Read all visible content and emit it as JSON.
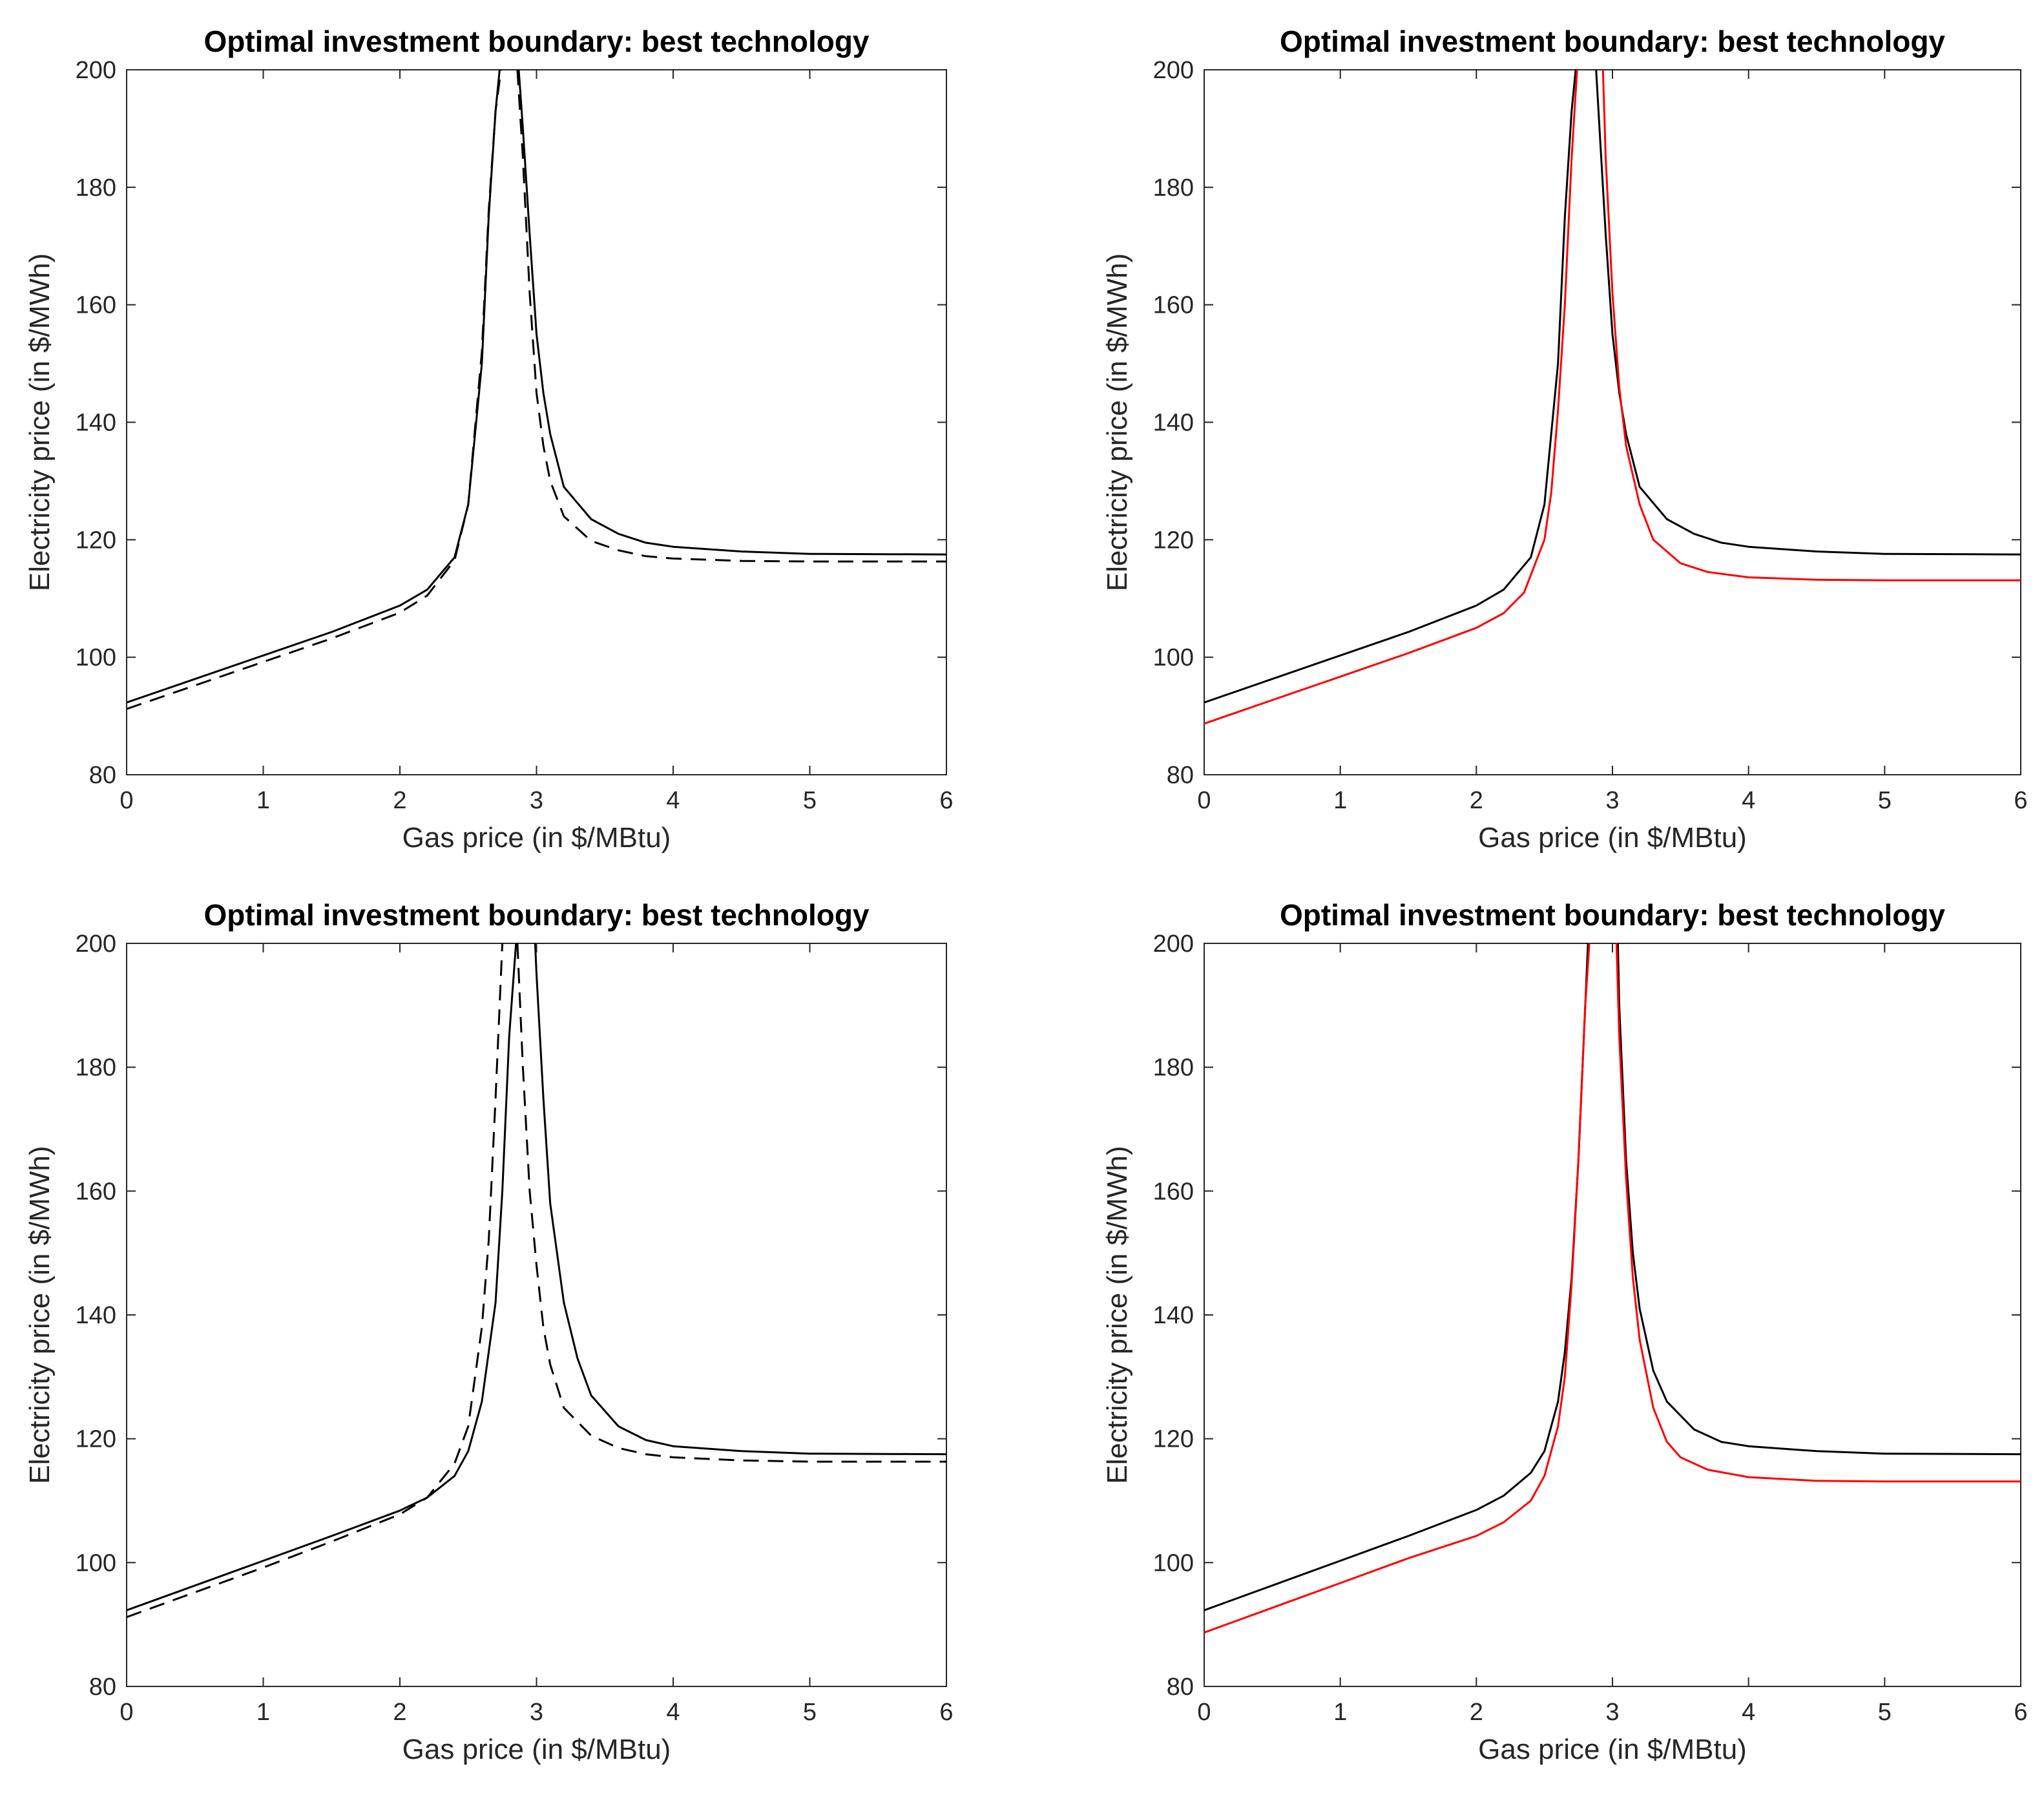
{
  "figure": {
    "colors": {
      "axis": "#262626",
      "series_black": "#000000",
      "series_red": "#ff0000"
    }
  },
  "chart_data": [
    {
      "type": "line",
      "title": "Optimal investment boundary: best technology",
      "xlabel": "Gas price (in $/MBtu)",
      "ylabel": "Electricity price (in $/MWh)",
      "xlim": [
        0,
        6
      ],
      "ylim": [
        80,
        200
      ],
      "xticks": [
        0,
        1,
        2,
        3,
        4,
        5,
        6
      ],
      "yticks": [
        80,
        100,
        120,
        140,
        160,
        180,
        200
      ],
      "grid": false,
      "series": [
        {
          "name": "baseline",
          "color": "#000000",
          "style": "solid",
          "segments": [
            {
              "x": [
                0,
                0.5,
                1,
                1.5,
                2,
                2.2,
                2.4,
                2.5,
                2.6,
                2.65,
                2.7,
                2.73
              ],
              "y": [
                92.3,
                96.3,
                100.3,
                104.3,
                108.8,
                111.5,
                117,
                126,
                150,
                175,
                193,
                200
              ]
            },
            {
              "x": [
                2.87,
                2.9,
                2.95,
                3.0,
                3.05,
                3.1,
                3.2,
                3.4,
                3.6,
                3.8,
                4.0,
                4.5,
                5.0,
                6.0
              ],
              "y": [
                200,
                190,
                172,
                155,
                145,
                138,
                129,
                123.5,
                121,
                119.5,
                118.8,
                118,
                117.6,
                117.5
              ]
            }
          ]
        },
        {
          "name": "comparison",
          "color": "#000000",
          "style": "dashed",
          "segments": [
            {
              "x": [
                0,
                0.5,
                1,
                1.5,
                2,
                2.2,
                2.4,
                2.5,
                2.6,
                2.65,
                2.7,
                2.74
              ],
              "y": [
                91.2,
                95.2,
                99.2,
                103.2,
                107.6,
                110.5,
                116.5,
                126,
                152,
                176,
                193,
                200
              ]
            },
            {
              "x": [
                2.86,
                2.9,
                2.95,
                3.0,
                3.05,
                3.1,
                3.2,
                3.4,
                3.6,
                3.8,
                4.0,
                4.5,
                5.0,
                6.0
              ],
              "y": [
                200,
                185,
                162,
                145,
                136,
                130,
                124,
                119.8,
                118.2,
                117.2,
                116.8,
                116.4,
                116.3,
                116.3
              ]
            }
          ]
        }
      ]
    },
    {
      "type": "line",
      "title": "Optimal investment boundary: best technology",
      "xlabel": "Gas price (in $/MBtu)",
      "ylabel": "Electricity price (in $/MWh)",
      "xlim": [
        0,
        6
      ],
      "ylim": [
        80,
        200
      ],
      "xticks": [
        0,
        1,
        2,
        3,
        4,
        5,
        6
      ],
      "yticks": [
        80,
        100,
        120,
        140,
        160,
        180,
        200
      ],
      "grid": false,
      "series": [
        {
          "name": "baseline",
          "color": "#000000",
          "style": "solid",
          "segments": [
            {
              "x": [
                0,
                0.5,
                1,
                1.5,
                2,
                2.2,
                2.4,
                2.5,
                2.6,
                2.65,
                2.7,
                2.73
              ],
              "y": [
                92.3,
                96.3,
                100.3,
                104.3,
                108.8,
                111.5,
                117,
                126,
                150,
                175,
                193,
                200
              ]
            },
            {
              "x": [
                2.88,
                2.9,
                2.95,
                3.0,
                3.05,
                3.1,
                3.2,
                3.4,
                3.6,
                3.8,
                4.0,
                4.5,
                5.0,
                6.0
              ],
              "y": [
                200,
                192,
                172,
                155,
                145,
                138,
                129,
                123.5,
                121,
                119.5,
                118.8,
                118,
                117.6,
                117.5
              ]
            }
          ]
        },
        {
          "name": "alternative",
          "color": "#ff0000",
          "style": "solid",
          "segments": [
            {
              "x": [
                0,
                0.5,
                1,
                1.5,
                2,
                2.2,
                2.35,
                2.5,
                2.55,
                2.6,
                2.65,
                2.7,
                2.74
              ],
              "y": [
                88.7,
                92.7,
                96.7,
                100.7,
                105,
                107.5,
                111,
                120,
                128,
                142,
                160,
                185,
                200
              ]
            },
            {
              "x": [
                2.93,
                2.95,
                3.0,
                3.05,
                3.1,
                3.2,
                3.3,
                3.5,
                3.7,
                4.0,
                4.5,
                5.0,
                6.0
              ],
              "y": [
                200,
                185,
                162,
                146,
                136,
                126,
                120,
                116,
                114.5,
                113.6,
                113.2,
                113.1,
                113.1
              ]
            }
          ]
        }
      ]
    },
    {
      "type": "line",
      "title": "Optimal investment boundary: best technology",
      "xlabel": "Gas price (in $/MBtu)",
      "ylabel": "Electricity price (in $/MWh)",
      "xlim": [
        0,
        6
      ],
      "ylim": [
        80,
        200
      ],
      "xticks": [
        0,
        1,
        2,
        3,
        4,
        5,
        6
      ],
      "yticks": [
        80,
        100,
        120,
        140,
        160,
        180,
        200
      ],
      "grid": false,
      "series": [
        {
          "name": "baseline",
          "color": "#000000",
          "style": "solid",
          "segments": [
            {
              "x": [
                0,
                0.5,
                1,
                1.5,
                2,
                2.2,
                2.4,
                2.5,
                2.6,
                2.7,
                2.75,
                2.8,
                2.85
              ],
              "y": [
                92.3,
                96.3,
                100.3,
                104.3,
                108.4,
                110.5,
                114,
                118,
                126,
                142,
                160,
                185,
                200
              ]
            },
            {
              "x": [
                2.99,
                3.0,
                3.05,
                3.1,
                3.2,
                3.3,
                3.4,
                3.6,
                3.8,
                4.0,
                4.5,
                5.0,
                6.0
              ],
              "y": [
                200,
                195,
                175,
                158,
                142,
                133,
                127,
                122,
                119.8,
                118.8,
                118,
                117.6,
                117.5
              ]
            }
          ]
        },
        {
          "name": "comparison",
          "color": "#000000",
          "style": "dashed",
          "segments": [
            {
              "x": [
                0,
                0.5,
                1,
                1.5,
                2,
                2.2,
                2.4,
                2.5,
                2.6,
                2.65,
                2.7,
                2.75
              ],
              "y": [
                91.2,
                95.2,
                99.2,
                103.4,
                107.8,
                110.5,
                116,
                122,
                138,
                152,
                175,
                200
              ]
            },
            {
              "x": [
                2.86,
                2.9,
                2.95,
                3.0,
                3.05,
                3.1,
                3.2,
                3.4,
                3.6,
                3.8,
                4.0,
                4.5,
                5.0,
                6.0
              ],
              "y": [
                200,
                180,
                160,
                148,
                138,
                132,
                125,
                120.5,
                118.5,
                117.5,
                117,
                116.5,
                116.3,
                116.3
              ]
            }
          ]
        }
      ]
    },
    {
      "type": "line",
      "title": "Optimal investment boundary: best technology",
      "xlabel": "Gas price (in $/MBtu)",
      "ylabel": "Electricity price (in $/MWh)",
      "xlim": [
        0,
        6
      ],
      "ylim": [
        80,
        200
      ],
      "xticks": [
        0,
        1,
        2,
        3,
        4,
        5,
        6
      ],
      "yticks": [
        80,
        100,
        120,
        140,
        160,
        180,
        200
      ],
      "grid": false,
      "series": [
        {
          "name": "baseline",
          "color": "#000000",
          "style": "solid",
          "segments": [
            {
              "x": [
                0,
                0.5,
                1,
                1.5,
                2,
                2.2,
                2.4,
                2.5,
                2.6,
                2.65,
                2.7,
                2.75,
                2.8,
                2.82
              ],
              "y": [
                92.3,
                96.3,
                100.3,
                104.3,
                108.5,
                110.8,
                114.5,
                118,
                126,
                134,
                146,
                165,
                190,
                200
              ]
            },
            {
              "x": [
                3.04,
                3.05,
                3.1,
                3.15,
                3.2,
                3.3,
                3.4,
                3.6,
                3.8,
                4.0,
                4.5,
                5.0,
                6.0
              ],
              "y": [
                200,
                190,
                165,
                150,
                141,
                131,
                126,
                121.5,
                119.5,
                118.8,
                118,
                117.6,
                117.5
              ]
            }
          ]
        },
        {
          "name": "alternative",
          "color": "#ff0000",
          "style": "solid",
          "segments": [
            {
              "x": [
                0,
                0.5,
                1,
                1.5,
                2,
                2.2,
                2.4,
                2.5,
                2.6,
                2.65,
                2.7,
                2.75,
                2.8,
                2.83
              ],
              "y": [
                88.7,
                92.7,
                96.7,
                100.7,
                104.3,
                106.5,
                110,
                114,
                122,
                130,
                145,
                165,
                190,
                200
              ]
            },
            {
              "x": [
                3.03,
                3.05,
                3.1,
                3.15,
                3.2,
                3.3,
                3.4,
                3.5,
                3.7,
                4.0,
                4.5,
                5.0,
                6.0
              ],
              "y": [
                200,
                185,
                162,
                146,
                136,
                125,
                119.5,
                117,
                115,
                113.8,
                113.2,
                113.1,
                113.1
              ]
            }
          ]
        }
      ]
    }
  ]
}
